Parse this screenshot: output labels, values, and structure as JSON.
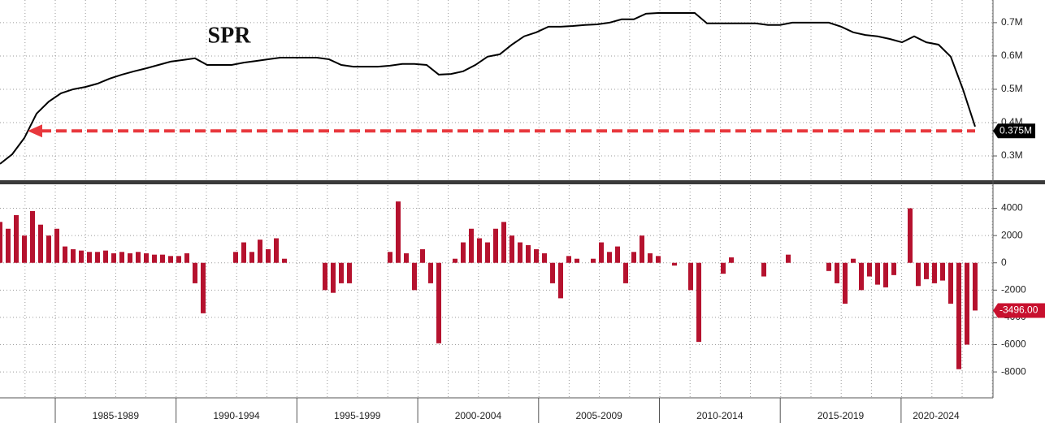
{
  "chart_data": [
    {
      "type": "line",
      "title": "SPR",
      "color": "#000000",
      "values": [
        0.276,
        0.305,
        0.354,
        0.427,
        0.463,
        0.488,
        0.5,
        0.507,
        0.517,
        0.532,
        0.544,
        0.554,
        0.563,
        0.573,
        0.583,
        0.588,
        0.593,
        0.573,
        0.573,
        0.573,
        0.58,
        0.585,
        0.59,
        0.595,
        0.595,
        0.595,
        0.595,
        0.59,
        0.573,
        0.568,
        0.568,
        0.568,
        0.571,
        0.576,
        0.576,
        0.573,
        0.544,
        0.546,
        0.554,
        0.573,
        0.598,
        0.605,
        0.634,
        0.659,
        0.671,
        0.688,
        0.688,
        0.69,
        0.693,
        0.695,
        0.7,
        0.71,
        0.71,
        0.727,
        0.729,
        0.729,
        0.729,
        0.729,
        0.698,
        0.698,
        0.698,
        0.698,
        0.698,
        0.693,
        0.693,
        0.7,
        0.7,
        0.7,
        0.7,
        0.688,
        0.671,
        0.663,
        0.659,
        0.651,
        0.641,
        0.659,
        0.641,
        0.634,
        0.598,
        0.5,
        0.388
      ],
      "ylim": [
        0.227,
        0.768
      ],
      "yticks": [
        {
          "value": 0.3,
          "label": "0.3M"
        },
        {
          "value": 0.4,
          "label": "0.4M"
        },
        {
          "value": 0.5,
          "label": "0.5M"
        },
        {
          "value": 0.6,
          "label": "0.6M"
        },
        {
          "value": 0.7,
          "label": "0.7M"
        }
      ],
      "grid": true,
      "annotation": {
        "value": 0.375,
        "label": "0.375M",
        "color": "#e8383d"
      }
    },
    {
      "type": "bar",
      "color": "#b5122e",
      "values": [
        3000,
        2500,
        3500,
        2000,
        3800,
        2800,
        2000,
        2500,
        1200,
        1000,
        900,
        800,
        800,
        900,
        700,
        800,
        700,
        800,
        700,
        600,
        600,
        500,
        500,
        700,
        -1500,
        -3700,
        0,
        0,
        0,
        800,
        1500,
        800,
        1700,
        1000,
        1800,
        300,
        0,
        0,
        0,
        0,
        -2000,
        -2200,
        -1500,
        -1500,
        0,
        0,
        0,
        0,
        800,
        4500,
        700,
        -2000,
        1000,
        -1500,
        -5900,
        0,
        300,
        1500,
        2500,
        1800,
        1500,
        2500,
        3000,
        2000,
        1500,
        1300,
        1000,
        700,
        -1500,
        -2600,
        500,
        300,
        0,
        300,
        1500,
        800,
        1200,
        -1500,
        800,
        2000,
        700,
        500,
        0,
        -200,
        0,
        -2000,
        -5800,
        0,
        0,
        -800,
        400,
        0,
        0,
        0,
        -1000,
        0,
        0,
        600,
        0,
        0,
        0,
        0,
        -600,
        -1500,
        -3000,
        300,
        -2000,
        -1000,
        -1600,
        -1800,
        -900,
        0,
        4000,
        -1700,
        -1200,
        -1500,
        -1300,
        -3000,
        -7800,
        -6000,
        -3496
      ],
      "ylim": [
        -9900,
        5700
      ],
      "yticks": [
        -8000,
        -6000,
        -4000,
        -2000,
        0,
        2000,
        4000
      ],
      "grid": true,
      "annotation": {
        "value": -3496,
        "label": "-3496.00",
        "color": "#c8102e"
      },
      "x_period_labels": [
        "1985-1989",
        "1990-1994",
        "1995-1999",
        "2000-2004",
        "2005-2009",
        "2010-2014",
        "2015-2019",
        "2020-2024"
      ]
    }
  ]
}
